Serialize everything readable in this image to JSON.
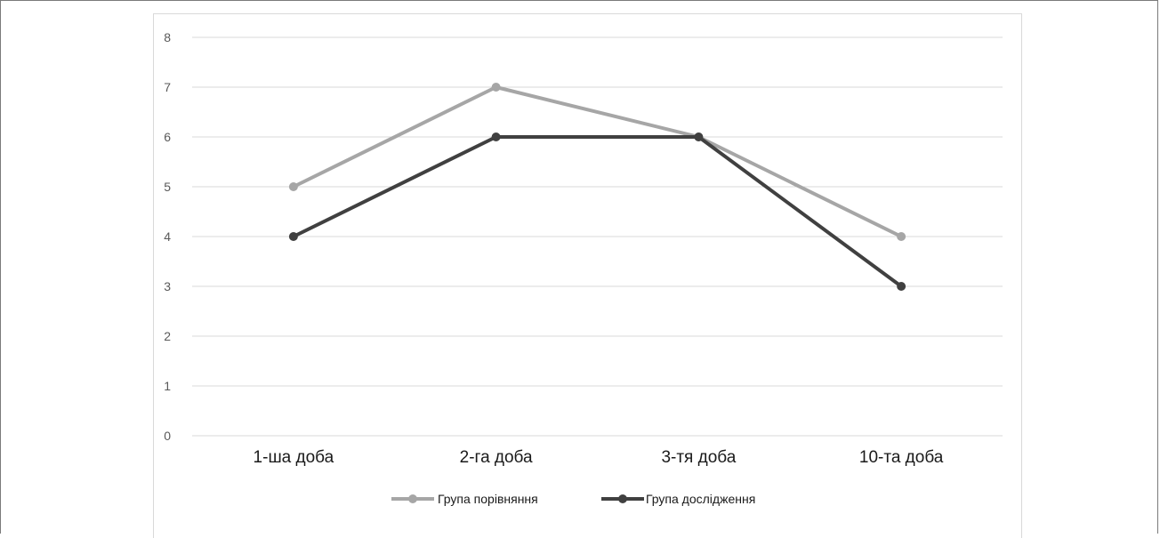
{
  "chart_data": {
    "type": "line",
    "categories": [
      "1-ша доба",
      "2-га доба",
      "3-тя доба",
      "10-та доба"
    ],
    "series": [
      {
        "name": "Група порівняння",
        "values": [
          5,
          7,
          6,
          4
        ],
        "color": "#a6a6a6"
      },
      {
        "name": "Група дослідження",
        "values": [
          4,
          6,
          6,
          3
        ],
        "color": "#404040"
      }
    ],
    "title": "",
    "xlabel": "",
    "ylabel": "",
    "ylim": [
      0,
      8
    ],
    "yticks": [
      "0",
      "1",
      "2",
      "3",
      "4",
      "5",
      "6",
      "7",
      "8"
    ],
    "grid": true,
    "legend_position": "bottom"
  }
}
